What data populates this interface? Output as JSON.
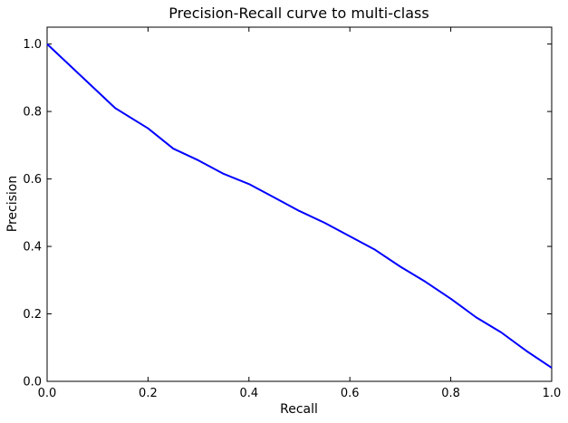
{
  "chart_data": {
    "type": "line",
    "title": "Precision-Recall curve to multi-class",
    "xlabel": "Recall",
    "ylabel": "Precision",
    "xlim": [
      0.0,
      1.0
    ],
    "ylim": [
      0.0,
      1.05
    ],
    "xticks": [
      "0.0",
      "0.2",
      "0.4",
      "0.6",
      "0.8",
      "1.0"
    ],
    "yticks": [
      "0.0",
      "0.2",
      "0.4",
      "0.6",
      "0.8",
      "1.0"
    ],
    "grid": false,
    "line_color": "#0000ff",
    "series": [
      {
        "x": [
          0.0,
          0.135,
          0.2,
          0.25,
          0.3,
          0.35,
          0.4,
          0.45,
          0.5,
          0.55,
          0.6,
          0.65,
          0.7,
          0.75,
          0.8,
          0.85,
          0.9,
          0.95,
          1.0
        ],
        "y": [
          1.0,
          0.81,
          0.75,
          0.69,
          0.655,
          0.615,
          0.585,
          0.545,
          0.505,
          0.47,
          0.43,
          0.39,
          0.34,
          0.295,
          0.245,
          0.19,
          0.145,
          0.09,
          0.04
        ]
      }
    ]
  }
}
